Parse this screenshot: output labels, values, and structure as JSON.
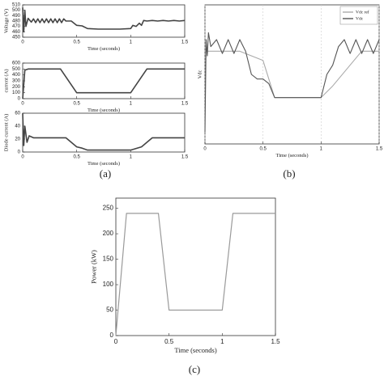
{
  "chart_data": [
    {
      "type": "line",
      "ylabel": "Voltage (V)",
      "xlabel": "Time (seconds)",
      "xlim": [
        0,
        1.5
      ],
      "xticks": [
        0,
        0.5,
        1,
        1.5
      ],
      "ylim": [
        450,
        510
      ],
      "yticks": [
        450,
        460,
        470,
        480,
        490,
        500,
        510
      ],
      "color": "#444",
      "x": [
        0,
        0.01,
        0.02,
        0.03,
        0.05,
        0.08,
        0.1,
        0.12,
        0.14,
        0.16,
        0.18,
        0.2,
        0.22,
        0.24,
        0.26,
        0.28,
        0.3,
        0.32,
        0.34,
        0.36,
        0.38,
        0.4,
        0.45,
        0.5,
        0.55,
        0.6,
        0.7,
        0.8,
        0.9,
        1.0,
        1.02,
        1.05,
        1.08,
        1.1,
        1.12,
        1.15,
        1.2,
        1.25,
        1.3,
        1.35,
        1.4,
        1.45,
        1.5
      ],
      "values": [
        505,
        460,
        500,
        470,
        485,
        478,
        484,
        477,
        484,
        477,
        484,
        477,
        484,
        477,
        484,
        477,
        484,
        477,
        484,
        477,
        484,
        480,
        480,
        472,
        471,
        466,
        465,
        465,
        465,
        466,
        472,
        470,
        476,
        472,
        481,
        480,
        481,
        480,
        481,
        480,
        481,
        480,
        481
      ]
    },
    {
      "type": "line",
      "ylabel": "current (A)",
      "xlabel": "Time (seconds)",
      "xlim": [
        0,
        1.5
      ],
      "xticks": [
        0,
        0.5,
        1,
        1.5
      ],
      "ylim": [
        0,
        600
      ],
      "yticks": [
        0,
        100,
        200,
        300,
        400,
        500,
        600
      ],
      "color": "#444",
      "x": [
        0,
        0.02,
        0.05,
        0.35,
        0.5,
        1.0,
        1.15,
        1.5
      ],
      "values": [
        0,
        480,
        500,
        500,
        100,
        100,
        500,
        500
      ]
    },
    {
      "type": "line",
      "ylabel": "Diode current (A)",
      "xlabel": "Time (seconds)",
      "xlim": [
        0,
        1.5
      ],
      "xticks": [
        0,
        0.5,
        1,
        1.5
      ],
      "ylim": [
        0,
        60
      ],
      "yticks": [
        0,
        20,
        40,
        60
      ],
      "color": "#444",
      "x": [
        0,
        0.01,
        0.02,
        0.04,
        0.06,
        0.1,
        0.2,
        0.3,
        0.4,
        0.45,
        0.5,
        0.55,
        0.6,
        0.8,
        1.0,
        1.1,
        1.15,
        1.2,
        1.3,
        1.4,
        1.5
      ],
      "values": [
        60,
        10,
        40,
        15,
        25,
        22,
        22,
        22,
        22,
        15,
        8,
        6,
        3,
        3,
        3,
        8,
        15,
        22,
        22,
        22,
        22
      ]
    },
    {
      "type": "line",
      "ylabel": "Vdc",
      "xlabel": "Time (seconds)",
      "xlim": [
        0,
        1.5
      ],
      "xticks": [
        0,
        0.5,
        1,
        1.5
      ],
      "ylim": [
        440,
        500
      ],
      "grid": true,
      "legend": "upper right",
      "series": [
        {
          "name": "Vdc ref",
          "color": "#aaaaaa",
          "x": [
            0,
            0.05,
            0.3,
            0.5,
            0.6,
            1.0,
            1.1,
            1.35,
            1.5
          ],
          "values": [
            480,
            480,
            480,
            476,
            460,
            460,
            465,
            480,
            480
          ]
        },
        {
          "name": "Vdc",
          "color": "#555555",
          "x": [
            0,
            0.01,
            0.02,
            0.03,
            0.05,
            0.1,
            0.15,
            0.2,
            0.25,
            0.3,
            0.35,
            0.4,
            0.45,
            0.5,
            0.55,
            0.6,
            0.8,
            1.0,
            1.05,
            1.1,
            1.15,
            1.2,
            1.25,
            1.3,
            1.35,
            1.4,
            1.45,
            1.5
          ],
          "values": [
            445,
            485,
            478,
            488,
            482,
            485,
            479,
            485,
            479,
            485,
            480,
            470,
            468,
            468,
            466,
            460,
            460,
            460,
            470,
            474,
            482,
            485,
            479,
            485,
            479,
            485,
            479,
            485
          ]
        }
      ]
    },
    {
      "type": "line",
      "ylabel": "Power (kW)",
      "xlabel": "Time (seconds)",
      "xlim": [
        0,
        1.5
      ],
      "xticks": [
        0,
        0.5,
        1,
        1.5
      ],
      "ylim": [
        0,
        270
      ],
      "yticks": [
        0,
        50,
        100,
        150,
        200,
        250
      ],
      "color": "#9a9a9a",
      "x": [
        0,
        0.1,
        0.4,
        0.5,
        1.0,
        1.1,
        1.5
      ],
      "values": [
        0,
        240,
        240,
        50,
        50,
        240,
        240
      ]
    }
  ],
  "panel_labels": [
    "(a)",
    "(b)",
    "(c)"
  ]
}
